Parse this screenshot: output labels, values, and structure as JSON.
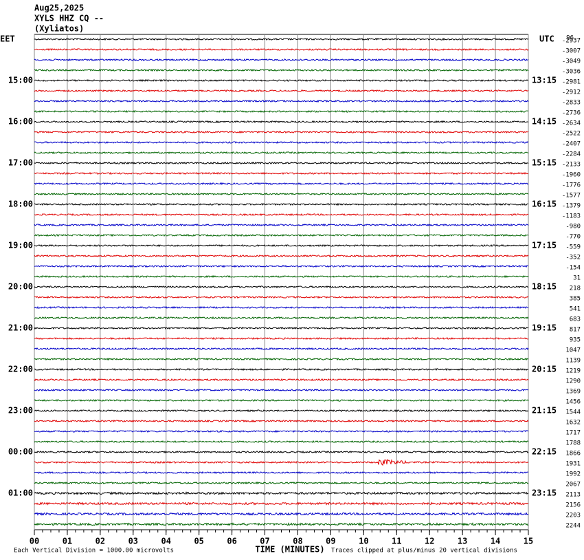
{
  "chart_data": {
    "type": "helicorder",
    "title_lines": [
      "Aug25,2025",
      "XYLS HHZ CQ --",
      "(Xyliatos)"
    ],
    "left_axis_label": "EET",
    "right_axis_label": "UTC",
    "top_right_label": "96",
    "trace_colors": [
      "#000000",
      "#e00000",
      "#0000c8",
      "#006400"
    ],
    "left_row_labels": [
      null,
      null,
      null,
      null,
      "15:00",
      null,
      null,
      null,
      "16:00",
      null,
      null,
      null,
      "17:00",
      null,
      null,
      null,
      "18:00",
      null,
      null,
      null,
      "19:00",
      null,
      null,
      null,
      "20:00",
      null,
      null,
      null,
      "21:00",
      null,
      null,
      null,
      "22:00",
      null,
      null,
      null,
      "23:00",
      null,
      null,
      null,
      "00:00",
      null,
      null,
      null,
      "01:00",
      null,
      null,
      null
    ],
    "right_row_labels": [
      null,
      null,
      null,
      null,
      "13:15",
      null,
      null,
      null,
      "14:15",
      null,
      null,
      null,
      "15:15",
      null,
      null,
      null,
      "16:15",
      null,
      null,
      null,
      "17:15",
      null,
      null,
      null,
      "18:15",
      null,
      null,
      null,
      "19:15",
      null,
      null,
      null,
      "20:15",
      null,
      null,
      null,
      "21:15",
      null,
      null,
      null,
      "22:15",
      null,
      null,
      null,
      "23:15",
      null,
      null,
      null
    ],
    "row_offsets": [
      -2937,
      -3007,
      -3049,
      -3036,
      -2981,
      -2912,
      -2833,
      -2736,
      -2634,
      -2522,
      -2407,
      -2284,
      -2133,
      -1960,
      -1776,
      -1577,
      -1379,
      -1183,
      -980,
      -770,
      -559,
      -352,
      -154,
      31,
      218,
      385,
      541,
      683,
      817,
      935,
      1047,
      1139,
      1219,
      1290,
      1369,
      1456,
      1544,
      1632,
      1717,
      1788,
      1866,
      1931,
      1992,
      2067,
      2113,
      2156,
      2203,
      2244
    ],
    "xlim": [
      0,
      15
    ],
    "xticks": [
      {
        "value": 0,
        "label": "00"
      },
      {
        "value": 1,
        "label": "01"
      },
      {
        "value": 2,
        "label": "02"
      },
      {
        "value": 3,
        "label": "03"
      },
      {
        "value": 4,
        "label": "04"
      },
      {
        "value": 5,
        "label": "05"
      },
      {
        "value": 6,
        "label": "06"
      },
      {
        "value": 7,
        "label": "07"
      },
      {
        "value": 8,
        "label": "08"
      },
      {
        "value": 9,
        "label": "09"
      },
      {
        "value": 10,
        "label": "10"
      },
      {
        "value": 11,
        "label": "11"
      },
      {
        "value": 12,
        "label": "12"
      },
      {
        "value": 13,
        "label": "13"
      },
      {
        "value": 14,
        "label": "14"
      },
      {
        "value": 15,
        "label": "15"
      }
    ],
    "x_label": "TIME (MINUTES)",
    "footer_left": "Each Vertical Division = 1000.00 microvolts",
    "footer_right": "Traces clipped at plus/minus 20 vertical divisions",
    "grid": true
  }
}
